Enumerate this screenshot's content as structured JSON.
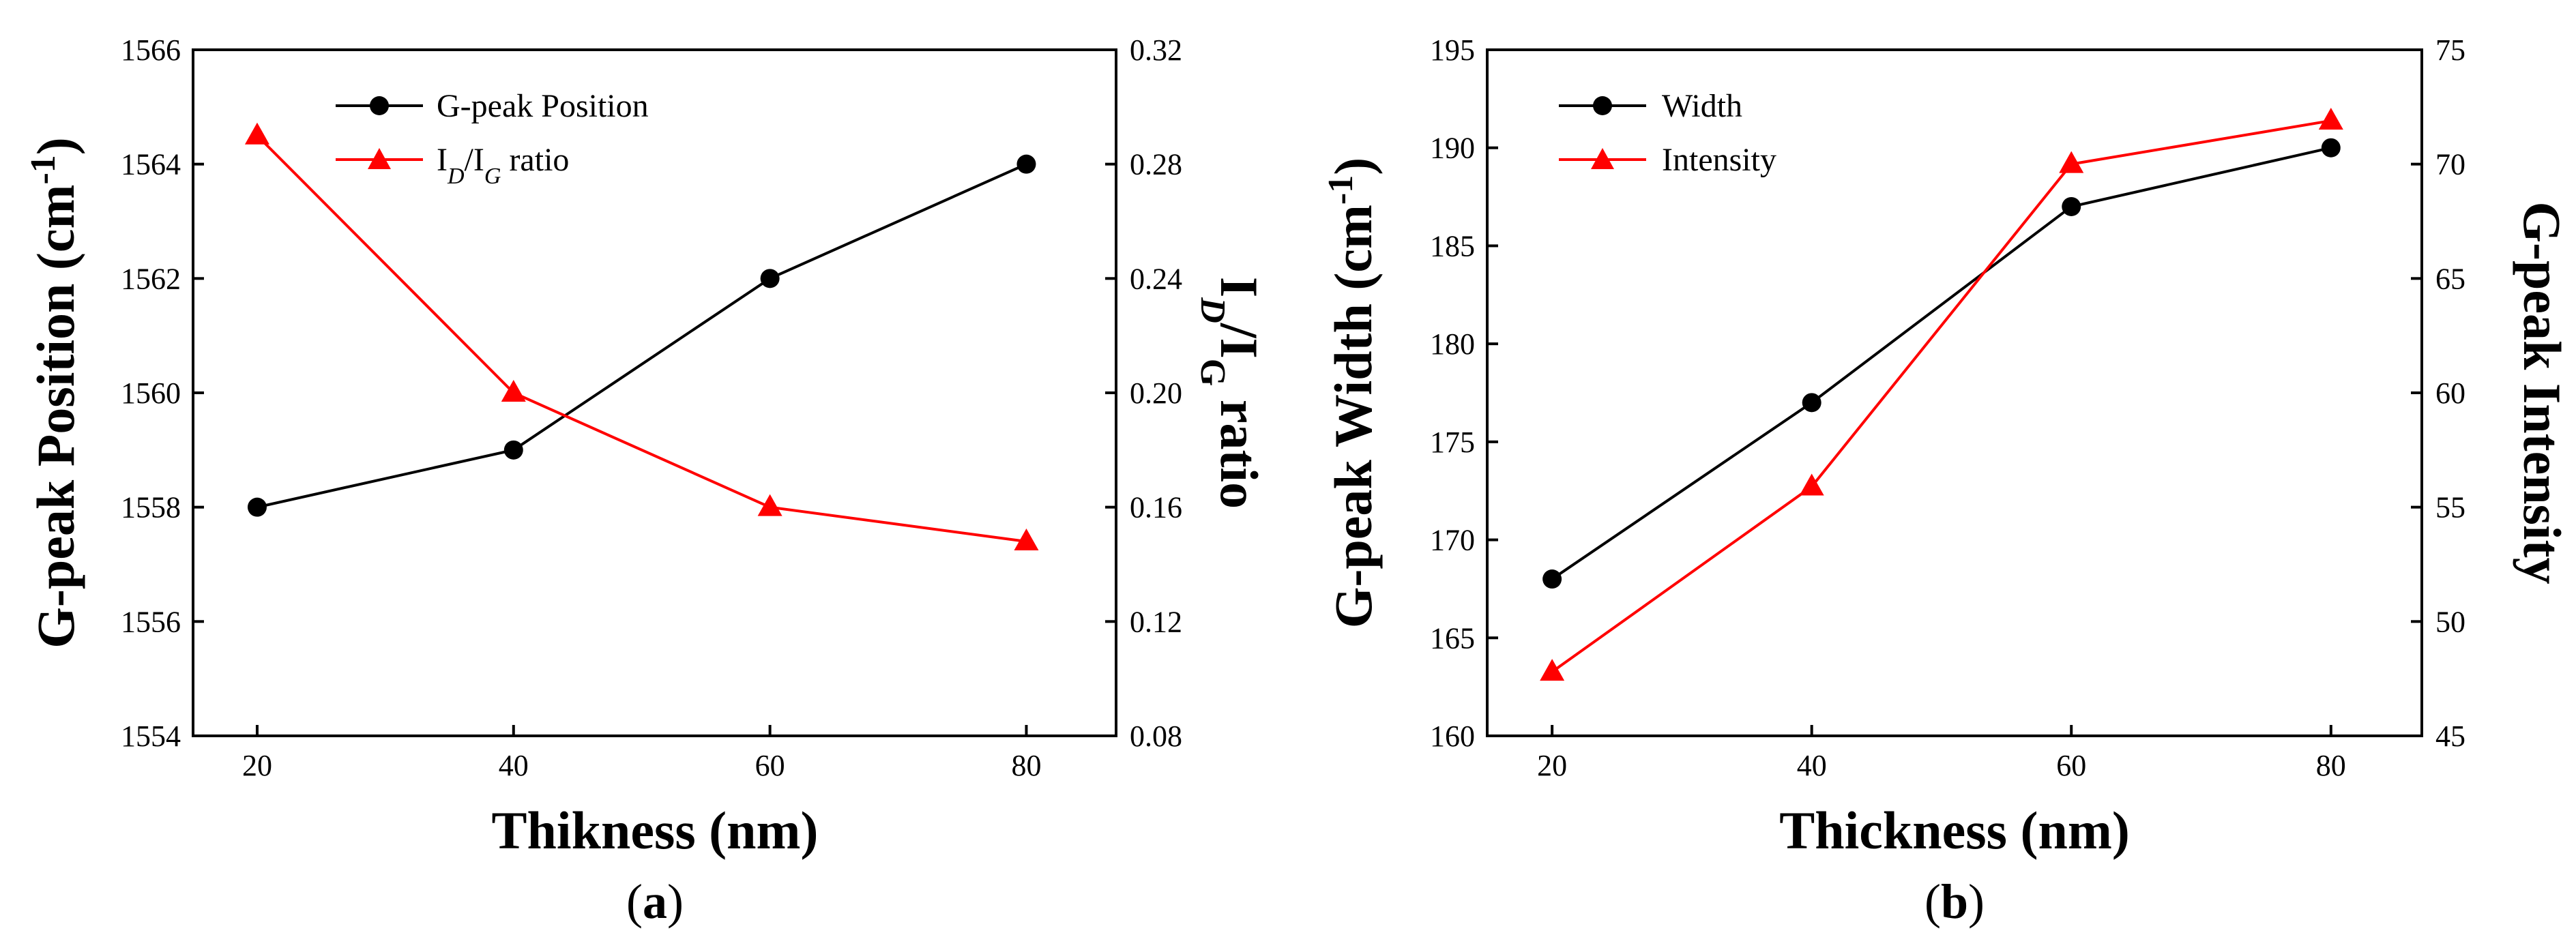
{
  "chart_data": [
    {
      "type": "line",
      "panel_label": "a",
      "x": [
        20,
        40,
        60,
        80
      ],
      "xlabel": "Thikness (nm)",
      "xlim": [
        15,
        87
      ],
      "xticks": [
        "20",
        "40",
        "60",
        "80"
      ],
      "ylabel": "G-peak Position (cm",
      "ylabel_sup": "-1",
      "ylabel_end": ")",
      "ylim": [
        1554,
        1566
      ],
      "yticks": [
        "1554",
        "1556",
        "1558",
        "1560",
        "1562",
        "1564",
        "1566"
      ],
      "y2label_I1": "I",
      "y2label_sub1": "D",
      "y2label_I2": "/I",
      "y2label_sub2": "G",
      "y2label_end": " ratio",
      "y2lim": [
        0.08,
        0.32
      ],
      "y2ticks": [
        "0.08",
        "0.12",
        "0.16",
        "0.20",
        "0.24",
        "0.28",
        "0.32"
      ],
      "legend_position": "top-left",
      "series": [
        {
          "name": "G-peak Position",
          "axis": "left",
          "marker": "circle",
          "color": "#000000",
          "values": [
            1558,
            1559,
            1562,
            1564
          ]
        },
        {
          "name": "I_D/I_G ratio",
          "axis": "right",
          "marker": "triangle",
          "color": "#ff0000",
          "values": [
            0.29,
            0.2,
            0.16,
            0.148
          ]
        }
      ],
      "legend": {
        "s1": "G-peak Position",
        "s2_I1": "I",
        "s2_sub1": "D",
        "s2_I2": "/I",
        "s2_sub2": "G",
        "s2_end": " ratio"
      }
    },
    {
      "type": "line",
      "panel_label": "b",
      "x": [
        20,
        40,
        60,
        80
      ],
      "xlabel": "Thickness (nm)",
      "xlim": [
        15,
        87
      ],
      "xticks": [
        "20",
        "40",
        "60",
        "80"
      ],
      "ylabel": "G-peak Width (cm",
      "ylabel_sup": "-1",
      "ylabel_end": ")",
      "ylim": [
        160,
        195
      ],
      "yticks": [
        "160",
        "165",
        "170",
        "175",
        "180",
        "185",
        "190",
        "195"
      ],
      "y2label": "G-peak Intensity",
      "y2lim": [
        45,
        75
      ],
      "y2ticks": [
        "45",
        "50",
        "55",
        "60",
        "65",
        "70",
        "75"
      ],
      "legend_position": "top-left",
      "series": [
        {
          "name": "Width",
          "axis": "left",
          "marker": "circle",
          "color": "#000000",
          "values": [
            168,
            177,
            187,
            190
          ]
        },
        {
          "name": "Intensity",
          "axis": "right",
          "marker": "triangle",
          "color": "#ff0000",
          "values": [
            47.8,
            55.9,
            70,
            71.9
          ]
        }
      ],
      "legend": {
        "s1": "Width",
        "s2": "Intensity"
      }
    }
  ],
  "captions": {
    "a": "(a)",
    "a_open": "(",
    "a_letter": "a",
    "a_close": ")",
    "b_open": "(",
    "b_letter": "b",
    "b_close": ")"
  }
}
